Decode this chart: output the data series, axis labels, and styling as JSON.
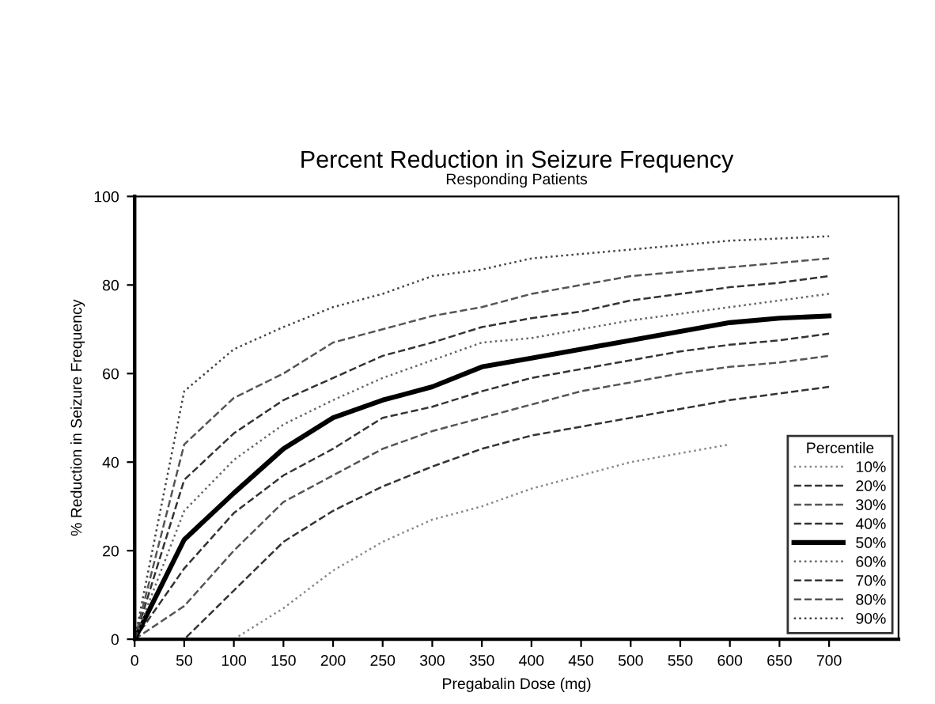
{
  "chart_data": {
    "type": "line",
    "title": "Percent Reduction in Seizure Frequency",
    "subtitle": "Responding Patients",
    "xlabel": "Pregabalin Dose (mg)",
    "ylabel": "% Reduction in Seizure Frequency",
    "legend_title": "Percentile",
    "x": [
      0,
      50,
      100,
      150,
      200,
      250,
      300,
      350,
      400,
      450,
      500,
      550,
      600,
      650,
      700
    ],
    "series": [
      {
        "name": "10%",
        "color": "#888888",
        "line_style": "dotted",
        "values": [
          0,
          0,
          0,
          7,
          15.5,
          22,
          27,
          30,
          34,
          37,
          40,
          42,
          44,
          null,
          null
        ]
      },
      {
        "name": "20%",
        "color": "#333333",
        "line_style": "dashed",
        "values": [
          0,
          0,
          11,
          22,
          29,
          34.5,
          39,
          43,
          46,
          48,
          50,
          52,
          54,
          55.5,
          57
        ]
      },
      {
        "name": "30%",
        "color": "#555555",
        "line_style": "dashed",
        "values": [
          0,
          7.5,
          20,
          31,
          37,
          43,
          47,
          50,
          53,
          56,
          58,
          60,
          61.5,
          62.5,
          64
        ]
      },
      {
        "name": "40%",
        "color": "#333333",
        "line_style": "dashed",
        "values": [
          0,
          16,
          28.5,
          37,
          43,
          50,
          52.5,
          56,
          59,
          61,
          63,
          65,
          66.5,
          67.5,
          69
        ]
      },
      {
        "name": "50%",
        "color": "#000000",
        "line_style": "solid",
        "values": [
          0,
          22.5,
          33,
          43,
          50,
          54,
          57,
          61.5,
          63.5,
          65.5,
          67.5,
          69.5,
          71.5,
          72.5,
          73
        ]
      },
      {
        "name": "60%",
        "color": "#666666",
        "line_style": "dotted",
        "values": [
          0,
          29,
          40.5,
          48.5,
          54,
          59,
          63,
          67,
          68,
          70,
          72,
          73.5,
          75,
          76.5,
          78
        ]
      },
      {
        "name": "70%",
        "color": "#333333",
        "line_style": "dashed",
        "values": [
          0,
          36,
          46.5,
          54,
          59,
          64,
          67,
          70.5,
          72.5,
          74,
          76.5,
          78,
          79.5,
          80.5,
          82
        ]
      },
      {
        "name": "80%",
        "color": "#555555",
        "line_style": "dashed",
        "values": [
          0,
          44,
          54.5,
          60,
          67,
          70,
          73,
          75,
          78,
          80,
          82,
          83,
          84,
          85,
          86
        ]
      },
      {
        "name": "90%",
        "color": "#444444",
        "line_style": "dotted",
        "values": [
          0,
          56,
          65.5,
          70.5,
          75,
          78,
          82,
          83.5,
          86,
          87,
          88,
          89,
          90,
          90.5,
          91
        ]
      }
    ],
    "xlim": [
      0,
      770
    ],
    "xticks": [
      0,
      50,
      100,
      150,
      200,
      250,
      300,
      350,
      400,
      450,
      500,
      550,
      600,
      650,
      700
    ],
    "ylim": [
      0,
      100
    ],
    "yticks": [
      0,
      20,
      40,
      60,
      80,
      100
    ],
    "grid": false,
    "legend": "bottom right",
    "marker": "none"
  }
}
